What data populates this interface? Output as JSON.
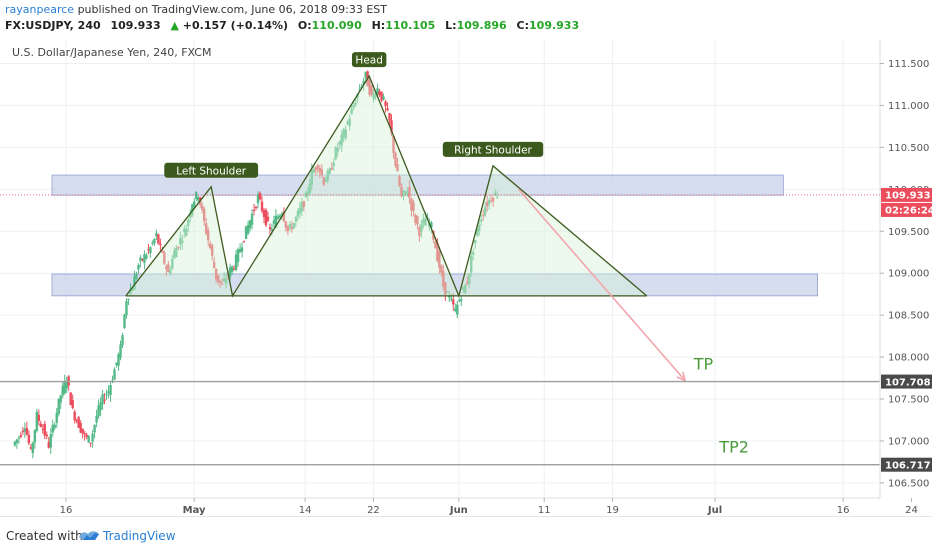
{
  "header": {
    "author": "rayanpearce",
    "published_text": "published on TradingView.com, June 06, 2018 09:33 EST",
    "symbol": "FX:USDJPY, 240",
    "last": "109.933",
    "change_arrow": "▲",
    "change": "+0.157 (+0.14%)",
    "o_label": "O:",
    "o_value": "110.090",
    "h_label": "H:",
    "h_value": "110.105",
    "l_label": "L:",
    "l_value": "109.896",
    "c_label": "C:",
    "c_value": "109.933"
  },
  "footer": {
    "created_with": "Created with",
    "brand": "TradingView",
    "logo_icon": "tradingview-logo-icon"
  },
  "chart_data": {
    "type": "candlestick",
    "title": "U.S. Dollar/Japanese Yen, 240, FXCM",
    "ylim": [
      106.32,
      111.78
    ],
    "y_ticks": [
      106.5,
      107.0,
      107.5,
      108.0,
      108.5,
      109.0,
      109.5,
      110.0,
      110.5,
      111.0,
      111.5
    ],
    "y_tick_labels": [
      "106.500",
      "107.000",
      "107.500",
      "108.000",
      "108.500",
      "109.000",
      "109.500",
      "110.000",
      "110.500",
      "111.000",
      "111.500"
    ],
    "x_ticks": [
      {
        "label": "16",
        "day": 0
      },
      {
        "label": "May",
        "day": 15
      },
      {
        "label": "14",
        "day": 28
      },
      {
        "label": "22",
        "day": 36
      },
      {
        "label": "Jun",
        "day": 46
      },
      {
        "label": "11",
        "day": 56
      },
      {
        "label": "19",
        "day": 64
      },
      {
        "label": "Jul",
        "day": 76
      },
      {
        "label": "16",
        "day": 91
      },
      {
        "label": "24",
        "day": 99
      }
    ],
    "price_path": [
      [
        -6.1,
        106.95
      ],
      [
        -5.4,
        107.05
      ],
      [
        -4.7,
        107.2
      ],
      [
        -4.0,
        106.85
      ],
      [
        -3.3,
        107.3
      ],
      [
        -2.6,
        107.15
      ],
      [
        -1.9,
        106.95
      ],
      [
        -1.2,
        107.25
      ],
      [
        -0.5,
        107.55
      ],
      [
        0.2,
        107.75
      ],
      [
        0.9,
        107.35
      ],
      [
        1.6,
        107.2
      ],
      [
        2.3,
        107.05
      ],
      [
        3.0,
        107.0
      ],
      [
        3.7,
        107.3
      ],
      [
        4.4,
        107.5
      ],
      [
        5.1,
        107.6
      ],
      [
        5.8,
        107.85
      ],
      [
        6.5,
        108.1
      ],
      [
        7.2,
        108.7
      ],
      [
        7.9,
        108.85
      ],
      [
        8.6,
        109.1
      ],
      [
        9.3,
        109.2
      ],
      [
        10.0,
        109.3
      ],
      [
        10.7,
        109.45
      ],
      [
        11.4,
        109.2
      ],
      [
        12.1,
        109.0
      ],
      [
        12.8,
        109.25
      ],
      [
        13.5,
        109.4
      ],
      [
        14.2,
        109.55
      ],
      [
        14.9,
        109.85
      ],
      [
        15.6,
        109.95
      ],
      [
        16.3,
        109.6
      ],
      [
        17.0,
        109.3
      ],
      [
        17.7,
        108.95
      ],
      [
        18.4,
        108.85
      ],
      [
        19.1,
        109.0
      ],
      [
        19.8,
        109.1
      ],
      [
        20.5,
        109.3
      ],
      [
        21.2,
        109.5
      ],
      [
        21.9,
        109.7
      ],
      [
        22.6,
        109.9
      ],
      [
        23.3,
        109.7
      ],
      [
        24.0,
        109.5
      ],
      [
        24.7,
        109.65
      ],
      [
        25.4,
        109.75
      ],
      [
        26.1,
        109.5
      ],
      [
        26.8,
        109.6
      ],
      [
        27.5,
        109.75
      ],
      [
        28.2,
        109.9
      ],
      [
        28.9,
        110.2
      ],
      [
        29.6,
        110.3
      ],
      [
        30.3,
        110.1
      ],
      [
        31.0,
        110.2
      ],
      [
        31.7,
        110.45
      ],
      [
        32.4,
        110.6
      ],
      [
        33.1,
        110.8
      ],
      [
        33.8,
        111.0
      ],
      [
        34.5,
        111.2
      ],
      [
        35.2,
        111.35
      ],
      [
        35.9,
        111.1
      ],
      [
        36.6,
        111.2
      ],
      [
        37.3,
        111.05
      ],
      [
        38.0,
        110.8
      ],
      [
        38.7,
        110.3
      ],
      [
        39.4,
        109.9
      ],
      [
        40.1,
        110.0
      ],
      [
        40.8,
        109.7
      ],
      [
        41.5,
        109.5
      ],
      [
        42.2,
        109.65
      ],
      [
        42.9,
        109.55
      ],
      [
        43.6,
        109.2
      ],
      [
        44.3,
        108.85
      ],
      [
        45.0,
        108.7
      ],
      [
        45.7,
        108.55
      ],
      [
        46.4,
        108.75
      ],
      [
        47.1,
        108.9
      ],
      [
        47.8,
        109.3
      ],
      [
        48.5,
        109.6
      ],
      [
        49.2,
        109.8
      ],
      [
        49.9,
        109.9
      ],
      [
        50.6,
        109.95
      ]
    ],
    "zones": [
      {
        "name": "resistance-zone",
        "from_day": 0,
        "to_day": 84,
        "low": 109.93,
        "high": 110.17
      },
      {
        "name": "support-zone",
        "from_day": 0,
        "to_day": 88,
        "low": 108.73,
        "high": 108.99
      }
    ],
    "pattern": {
      "name": "head-and-shoulders",
      "points": [
        [
          7.0,
          108.73
        ],
        [
          17.0,
          110.03
        ],
        [
          19.5,
          108.73
        ],
        [
          35.5,
          111.35
        ],
        [
          46.0,
          108.73
        ],
        [
          50.0,
          110.28
        ],
        [
          68.0,
          108.73
        ]
      ],
      "neckline": {
        "from": [
          7.0,
          108.73
        ],
        "to": [
          68.0,
          108.73
        ]
      },
      "labels": [
        {
          "text": "Left Shoulder",
          "day": 17.0,
          "price": 110.03
        },
        {
          "text": "Head",
          "day": 35.5,
          "price": 111.35
        },
        {
          "text": "Right Shoulder",
          "day": 50.0,
          "price": 110.28
        }
      ]
    },
    "projection_arrow": {
      "from": [
        53.0,
        110.0
      ],
      "to": [
        72.5,
        107.72
      ]
    },
    "targets": [
      {
        "label": "TP",
        "price": 107.708,
        "price_label": "107.708",
        "text_day": 73.5
      },
      {
        "label": "TP2",
        "price": 106.717,
        "price_label": "106.717",
        "text_day": 76.5
      }
    ],
    "current_price": {
      "value": 109.933,
      "label": "109.933",
      "countdown": "02:26:24"
    },
    "colors": {
      "up": "#53b987",
      "down": "#eb4d5c",
      "zone_fill": "#c8d1ea",
      "zone_stroke": "#8fa0d0",
      "pattern": "#3d5a1e",
      "pattern_fill": "#d8f1d8",
      "label_bg": "#3d5a1e",
      "arrow": "#f2a6ad",
      "target_line": "#9e9e9e",
      "target_text": "#4a9a3a",
      "price_badge": "#eb4d5c",
      "axis_badge": "#4a4a4a"
    }
  }
}
